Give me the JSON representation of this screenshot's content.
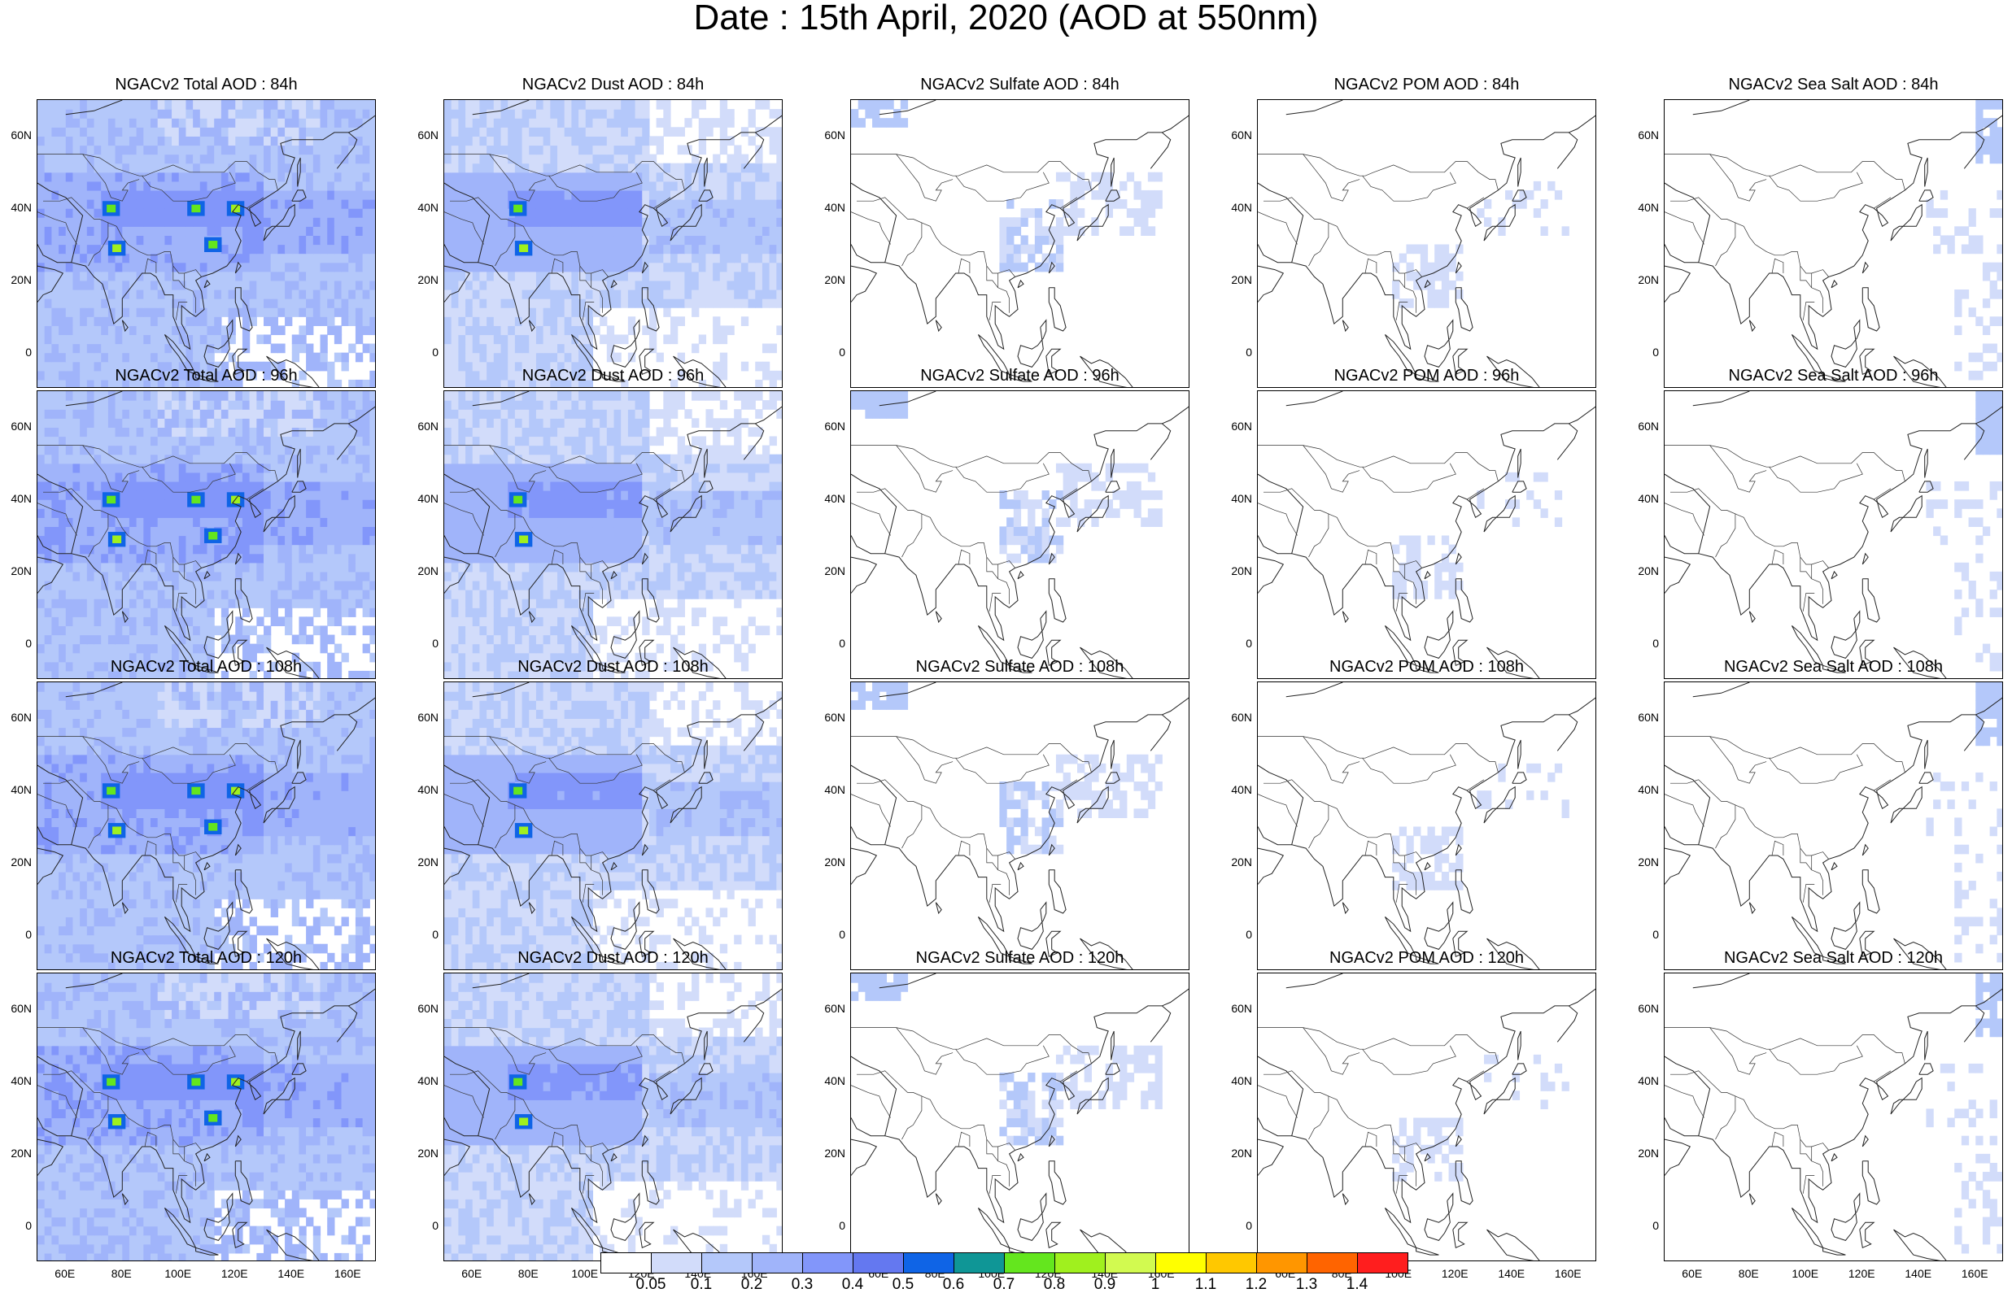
{
  "title": "Date : 15th April, 2020 (AOD at 550nm)",
  "axes": {
    "y_ticks": [
      "60N",
      "40N",
      "20N",
      "0"
    ],
    "x_ticks": [
      "60E",
      "80E",
      "100E",
      "120E",
      "140E",
      "160E"
    ]
  },
  "panels": [
    [
      {
        "title": "NGACv2 Total AOD : 84h",
        "species": "total"
      },
      {
        "title": "NGACv2 Dust AOD : 84h",
        "species": "dust"
      },
      {
        "title": "NGACv2 Sulfate AOD : 84h",
        "species": "sulfate"
      },
      {
        "title": "NGACv2 POM AOD : 84h",
        "species": "pom"
      },
      {
        "title": "NGACv2 Sea Salt AOD : 84h",
        "species": "seasalt"
      }
    ],
    [
      {
        "title": "NGACv2 Total AOD : 96h",
        "species": "total"
      },
      {
        "title": "NGACv2 Dust AOD : 96h",
        "species": "dust"
      },
      {
        "title": "NGACv2 Sulfate AOD : 96h",
        "species": "sulfate"
      },
      {
        "title": "NGACv2 POM AOD : 96h",
        "species": "pom"
      },
      {
        "title": "NGACv2 Sea Salt AOD : 96h",
        "species": "seasalt"
      }
    ],
    [
      {
        "title": "NGACv2 Total AOD : 108h",
        "species": "total"
      },
      {
        "title": "NGACv2 Dust AOD : 108h",
        "species": "dust"
      },
      {
        "title": "NGACv2 Sulfate AOD : 108h",
        "species": "sulfate"
      },
      {
        "title": "NGACv2 POM AOD : 108h",
        "species": "pom"
      },
      {
        "title": "NGACv2 Sea Salt AOD : 108h",
        "species": "seasalt"
      }
    ],
    [
      {
        "title": "NGACv2 Total AOD : 120h",
        "species": "total"
      },
      {
        "title": "NGACv2 Dust AOD : 120h",
        "species": "dust"
      },
      {
        "title": "NGACv2 Sulfate AOD : 120h",
        "species": "sulfate"
      },
      {
        "title": "NGACv2 POM AOD : 120h",
        "species": "pom"
      },
      {
        "title": "NGACv2 Sea Salt  AOD : 120h",
        "species": "seasalt"
      }
    ]
  ],
  "colorbar": {
    "colors": [
      "#ffffff",
      "#d2dcfa",
      "#b4c8fa",
      "#a0b4fa",
      "#8296fa",
      "#6478f0",
      "#0f64e6",
      "#0f9696",
      "#64e61e",
      "#a0f01e",
      "#d2fa50",
      "#ffff00",
      "#ffc800",
      "#ff9600",
      "#ff6400",
      "#ff1e1e"
    ],
    "labels": [
      "0.05",
      "0.1",
      "0.2",
      "0.3",
      "0.4",
      "0.5",
      "0.6",
      "0.7",
      "0.8",
      "0.9",
      "1",
      "1.1",
      "1.2",
      "1.3",
      "1.4"
    ]
  }
}
